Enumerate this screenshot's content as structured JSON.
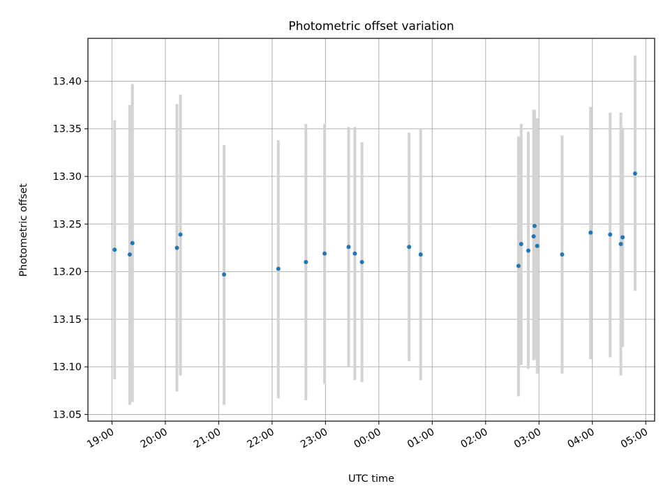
{
  "chart_data": {
    "type": "scatter",
    "title": "Photometric offset variation",
    "xlabel": "UTC time",
    "ylabel": "Photometric offset",
    "grid": true,
    "xlim": [
      "18:33",
      "05:10"
    ],
    "ylim": [
      13.043,
      13.445
    ],
    "x_ticks": [
      "19:00",
      "20:00",
      "21:00",
      "22:00",
      "23:00",
      "00:00",
      "01:00",
      "02:00",
      "03:00",
      "04:00",
      "05:00"
    ],
    "y_ticks": [
      "13.05",
      "13.10",
      "13.15",
      "13.20",
      "13.25",
      "13.30",
      "13.35",
      "13.40"
    ],
    "point_color": "#1f77b4",
    "errorbar_color": "#d3d3d3",
    "points": [
      {
        "x": "19:03",
        "y": 13.223,
        "ylo": 13.087,
        "yhi": 13.359
      },
      {
        "x": "19:20",
        "y": 13.218,
        "ylo": 13.06,
        "yhi": 13.375
      },
      {
        "x": "19:23",
        "y": 13.23,
        "ylo": 13.063,
        "yhi": 13.397
      },
      {
        "x": "20:13",
        "y": 13.225,
        "ylo": 13.074,
        "yhi": 13.376
      },
      {
        "x": "20:17",
        "y": 13.239,
        "ylo": 13.091,
        "yhi": 13.386
      },
      {
        "x": "21:06",
        "y": 13.197,
        "ylo": 13.06,
        "yhi": 13.333
      },
      {
        "x": "22:07",
        "y": 13.203,
        "ylo": 13.067,
        "yhi": 13.338
      },
      {
        "x": "22:38",
        "y": 13.21,
        "ylo": 13.065,
        "yhi": 13.355
      },
      {
        "x": "22:59",
        "y": 13.219,
        "ylo": 13.082,
        "yhi": 13.355
      },
      {
        "x": "23:26",
        "y": 13.226,
        "ylo": 13.1,
        "yhi": 13.352
      },
      {
        "x": "23:33",
        "y": 13.219,
        "ylo": 13.086,
        "yhi": 13.352
      },
      {
        "x": "23:41",
        "y": 13.21,
        "ylo": 13.084,
        "yhi": 13.336
      },
      {
        "x": "00:34",
        "y": 13.226,
        "ylo": 13.106,
        "yhi": 13.346
      },
      {
        "x": "00:47",
        "y": 13.218,
        "ylo": 13.086,
        "yhi": 13.35
      },
      {
        "x": "02:37",
        "y": 13.206,
        "ylo": 13.069,
        "yhi": 13.342
      },
      {
        "x": "02:40",
        "y": 13.229,
        "ylo": 13.102,
        "yhi": 13.355
      },
      {
        "x": "02:48",
        "y": 13.222,
        "ylo": 13.098,
        "yhi": 13.347
      },
      {
        "x": "02:54",
        "y": 13.237,
        "ylo": 13.107,
        "yhi": 13.37
      },
      {
        "x": "02:55",
        "y": 13.248,
        "ylo": 13.108,
        "yhi": 13.37
      },
      {
        "x": "02:58",
        "y": 13.227,
        "ylo": 13.093,
        "yhi": 13.361
      },
      {
        "x": "03:26",
        "y": 13.218,
        "ylo": 13.093,
        "yhi": 13.343
      },
      {
        "x": "03:58",
        "y": 13.241,
        "ylo": 13.108,
        "yhi": 13.373
      },
      {
        "x": "04:20",
        "y": 13.239,
        "ylo": 13.11,
        "yhi": 13.367
      },
      {
        "x": "04:32",
        "y": 13.229,
        "ylo": 13.091,
        "yhi": 13.367
      },
      {
        "x": "04:34",
        "y": 13.236,
        "ylo": 13.121,
        "yhi": 13.351
      },
      {
        "x": "04:48",
        "y": 13.303,
        "ylo": 13.18,
        "yhi": 13.427
      }
    ]
  }
}
